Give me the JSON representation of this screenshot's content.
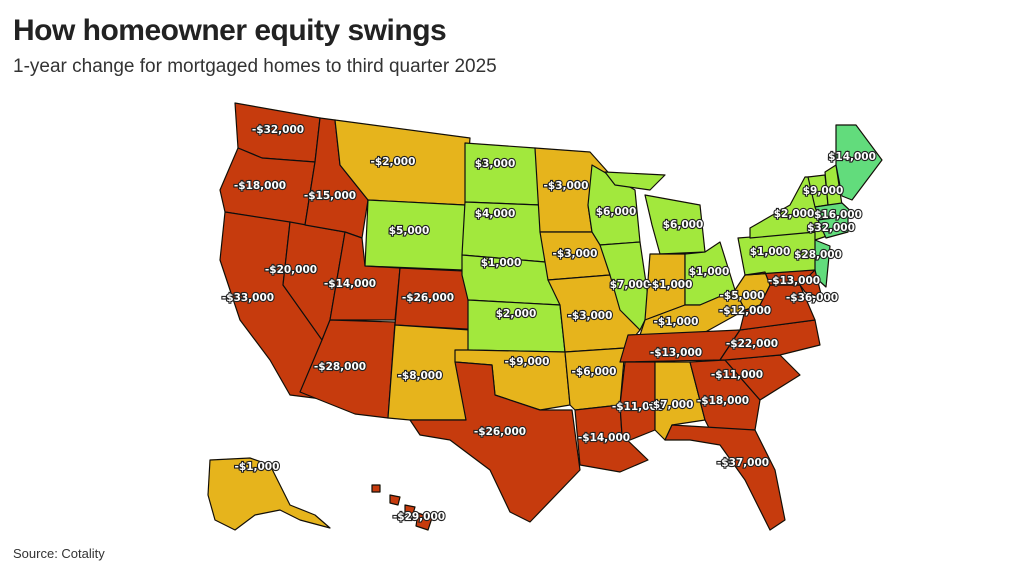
{
  "title": "How homeowner equity swings",
  "subtitle": "1-year change for mortgaged homes to third quarter 2025",
  "source": "Source: Cotality",
  "colors": {
    "large_loss": "#c63b0d",
    "small_loss": "#e6b41e",
    "small_gain": "#a2e83c",
    "large_gain": "#62dc7c"
  },
  "states": {
    "WA": "-$32,000",
    "OR": "-$18,000",
    "CA": "-$33,000",
    "NV": "-$20,000",
    "ID": "-$15,000",
    "MT": "-$2,000",
    "WY": "$5,000",
    "UT": "-$14,000",
    "AZ": "-$28,000",
    "CO": "-$26,000",
    "NM": "-$8,000",
    "ND": "$3,000",
    "SD": "$4,000",
    "NE": "$1,000",
    "KS": "$2,000",
    "OK": "-$9,000",
    "TX": "-$26,000",
    "MN": "-$3,000",
    "IA": "-$3,000",
    "MO": "-$3,000",
    "AR": "-$6,000",
    "LA": "-$14,000",
    "WI": "$6,000",
    "MI": "$6,000",
    "IL": "$7,000",
    "IN": "-$1,000",
    "OH": "$1,000",
    "KY": "-$1,000",
    "TN": "-$13,000",
    "MS": "-$11,000",
    "AL": "-$7,000",
    "GA": "-$18,000",
    "FL": "-$37,000",
    "SC": "-$11,000",
    "NC": "-$22,000",
    "VA": "-$12,000",
    "WV": "-$5,000",
    "PA": "$1,000",
    "NY": "$2,000",
    "NJ": "$28,000",
    "MD": "-$13,000",
    "DE": "-$36,000",
    "ME": "$14,000",
    "NH": "$9,000",
    "MA": "$16,000",
    "CT": "$32,000",
    "AK": "-$1,000",
    "HI": "-$29,000"
  }
}
